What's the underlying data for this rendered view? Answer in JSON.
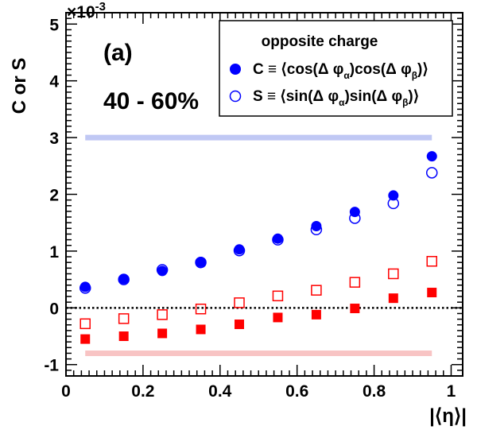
{
  "chart_data": {
    "type": "scatter",
    "ylabel": "C or S",
    "xlabel": "|⟨η⟩|",
    "y_multiplier": "×10",
    "y_multiplier_exp": "-3",
    "panel_label": "(a)",
    "centrality": "40 - 60%",
    "xlim": [
      0,
      1.03
    ],
    "ylim": [
      -1.2,
      5.2
    ],
    "x_ticks": [
      "0",
      "0.2",
      "0.4",
      "0.6",
      "0.8",
      "1"
    ],
    "y_ticks": [
      "-1",
      "0",
      "1",
      "2",
      "3",
      "4",
      "5"
    ],
    "legend": {
      "title": "opposite charge",
      "entries": [
        {
          "symbol": "C",
          "formula_start": " ≡ ⟨cos(Δ φ",
          "sub1": "α",
          "formula_mid": ")cos(Δ φ",
          "sub2": "β",
          "formula_end": ")⟩"
        },
        {
          "symbol": "S",
          "formula_start": " ≡ ⟨sin(Δ φ",
          "sub1": "α",
          "formula_mid": ")sin(Δ φ",
          "sub2": "β",
          "formula_end": ")⟩"
        }
      ],
      "position": "top-right"
    },
    "x": [
      0.05,
      0.15,
      0.25,
      0.35,
      0.45,
      0.55,
      0.65,
      0.75,
      0.85,
      0.95
    ],
    "series": [
      {
        "name": "C (opposite charge)",
        "marker": "filled-circle",
        "color": "#0000ff",
        "values": [
          0.37,
          0.51,
          0.65,
          0.81,
          1.03,
          1.22,
          1.44,
          1.69,
          1.98,
          2.67
        ]
      },
      {
        "name": "S (opposite charge)",
        "marker": "open-circle",
        "color": "#0000ff",
        "values": [
          0.35,
          0.5,
          0.67,
          0.8,
          1.01,
          1.2,
          1.38,
          1.58,
          1.84,
          2.38
        ]
      },
      {
        "marker": "filled-square",
        "color": "#ff0000",
        "values": [
          -0.55,
          -0.5,
          -0.45,
          -0.38,
          -0.29,
          -0.17,
          -0.12,
          -0.01,
          0.17,
          0.27
        ]
      },
      {
        "marker": "open-square",
        "color": "#ff0000",
        "values": [
          -0.28,
          -0.19,
          -0.12,
          -0.02,
          0.09,
          0.21,
          0.31,
          0.45,
          0.6,
          0.82
        ]
      }
    ],
    "bands": [
      {
        "y": 3.0,
        "x_from": 0.05,
        "x_to": 0.95,
        "color": "#c0c8f4"
      },
      {
        "y": -0.8,
        "x_from": 0.05,
        "x_to": 0.95,
        "color": "#f8c4c4"
      }
    ],
    "reference_line": {
      "y": 0,
      "style": "dotted"
    },
    "grid": false
  }
}
